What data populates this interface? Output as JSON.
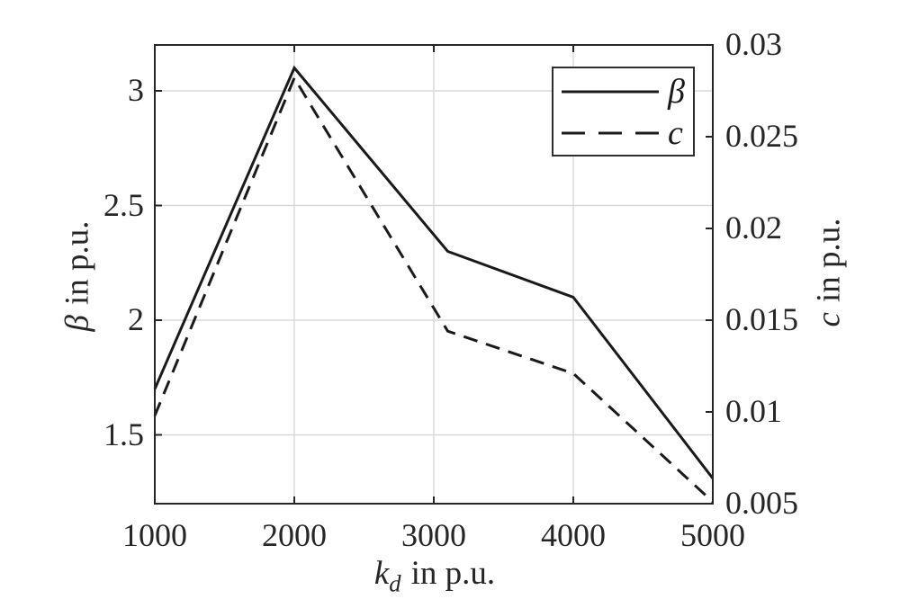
{
  "chart_data": {
    "type": "line",
    "title": "",
    "x": [
      1000,
      2000,
      3100,
      4000,
      5000
    ],
    "x_axis": {
      "label": {
        "var": "k",
        "sub": "d",
        "unit": "in p.u."
      },
      "range": [
        1000,
        5000
      ],
      "tick_labels": [
        "1000",
        "2000",
        "3000",
        "4000",
        "5000"
      ],
      "grid": true
    },
    "left_axis": {
      "label": {
        "var": "β",
        "unit": "in p.u."
      },
      "range": [
        1.2,
        3.2
      ],
      "tick_labels": [
        "1.5",
        "2",
        "2.5",
        "3"
      ],
      "grid": true
    },
    "right_axis": {
      "label": {
        "var": "c",
        "unit": "in p.u."
      },
      "range": [
        0.005,
        0.03
      ],
      "tick_labels": [
        "0.005",
        "0.01",
        "0.015",
        "0.02",
        "0.025",
        "0.03"
      ],
      "grid": false
    },
    "series": [
      {
        "name": "β",
        "axis": "left",
        "line_style": "solid",
        "color": "#1a1a1a",
        "values": [
          1.7,
          3.1,
          2.3,
          2.1,
          1.31
        ]
      },
      {
        "name": "c",
        "axis": "right",
        "line_style": "dashed",
        "color": "#1a1a1a",
        "values": [
          0.0098,
          0.0282,
          0.0144,
          0.0121,
          0.0051
        ]
      }
    ],
    "legend": {
      "position": "top-right",
      "entries": [
        {
          "label": "β",
          "line_style": "solid"
        },
        {
          "label": "c",
          "line_style": "dashed"
        }
      ]
    },
    "colors": {
      "axis": "#262626",
      "grid": "#d8d8d8",
      "line": "#1a1a1a",
      "background": "#ffffff"
    }
  }
}
